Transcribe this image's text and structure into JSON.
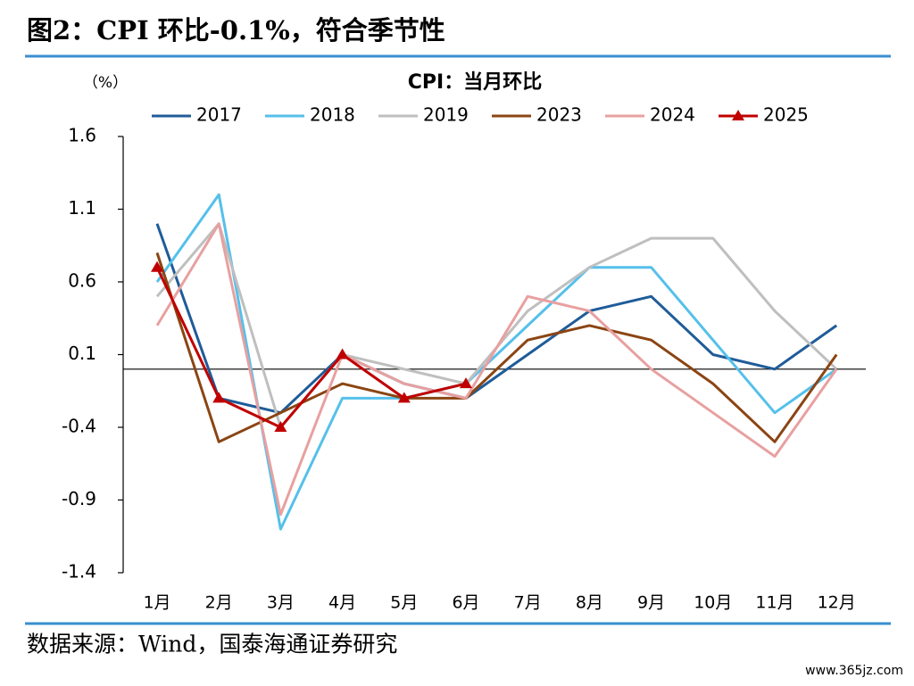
{
  "header": {
    "title": "图2：CPI 环比-0.1%，符合季节性"
  },
  "chart_data": {
    "type": "line",
    "title": "CPI：当月环比",
    "y_label": "（%）",
    "categories": [
      "1月",
      "2月",
      "3月",
      "4月",
      "5月",
      "6月",
      "7月",
      "8月",
      "9月",
      "10月",
      "11月",
      "12月"
    ],
    "series": [
      {
        "name": "2017",
        "color": "#1f5c99",
        "values": [
          1.0,
          -0.2,
          -0.3,
          0.1,
          -0.1,
          -0.2,
          0.1,
          0.4,
          0.5,
          0.1,
          0.0,
          0.3
        ]
      },
      {
        "name": "2018",
        "color": "#55c0ea",
        "values": [
          0.6,
          1.2,
          -1.1,
          -0.2,
          -0.2,
          -0.1,
          0.3,
          0.7,
          0.7,
          0.2,
          -0.3,
          0.0
        ]
      },
      {
        "name": "2019",
        "color": "#bfbfbf",
        "values": [
          0.5,
          1.0,
          -0.4,
          0.1,
          0.0,
          -0.1,
          0.4,
          0.7,
          0.9,
          0.9,
          0.4,
          0.0
        ]
      },
      {
        "name": "2023",
        "color": "#8b4513",
        "values": [
          0.8,
          -0.5,
          -0.3,
          -0.1,
          -0.2,
          -0.2,
          0.2,
          0.3,
          0.2,
          -0.1,
          -0.5,
          0.1
        ]
      },
      {
        "name": "2024",
        "color": "#e8a0a0",
        "values": [
          0.3,
          1.0,
          -1.0,
          0.1,
          -0.1,
          -0.2,
          0.5,
          0.4,
          0.0,
          -0.3,
          -0.6,
          0.0
        ]
      },
      {
        "name": "2025",
        "color": "#c00000",
        "marker": "triangle",
        "values": [
          0.7,
          -0.2,
          -0.4,
          0.1,
          -0.2,
          -0.1,
          null,
          null,
          null,
          null,
          null,
          null
        ]
      }
    ],
    "ylim": [
      -1.4,
      1.6
    ],
    "yticks": [
      -1.4,
      -0.9,
      -0.4,
      0.1,
      0.6,
      1.1,
      1.6
    ],
    "grid": false,
    "legend": "top"
  },
  "footer": {
    "source": "数据来源：Wind，国泰海通证券研究"
  },
  "watermark": "www.365jz.com"
}
